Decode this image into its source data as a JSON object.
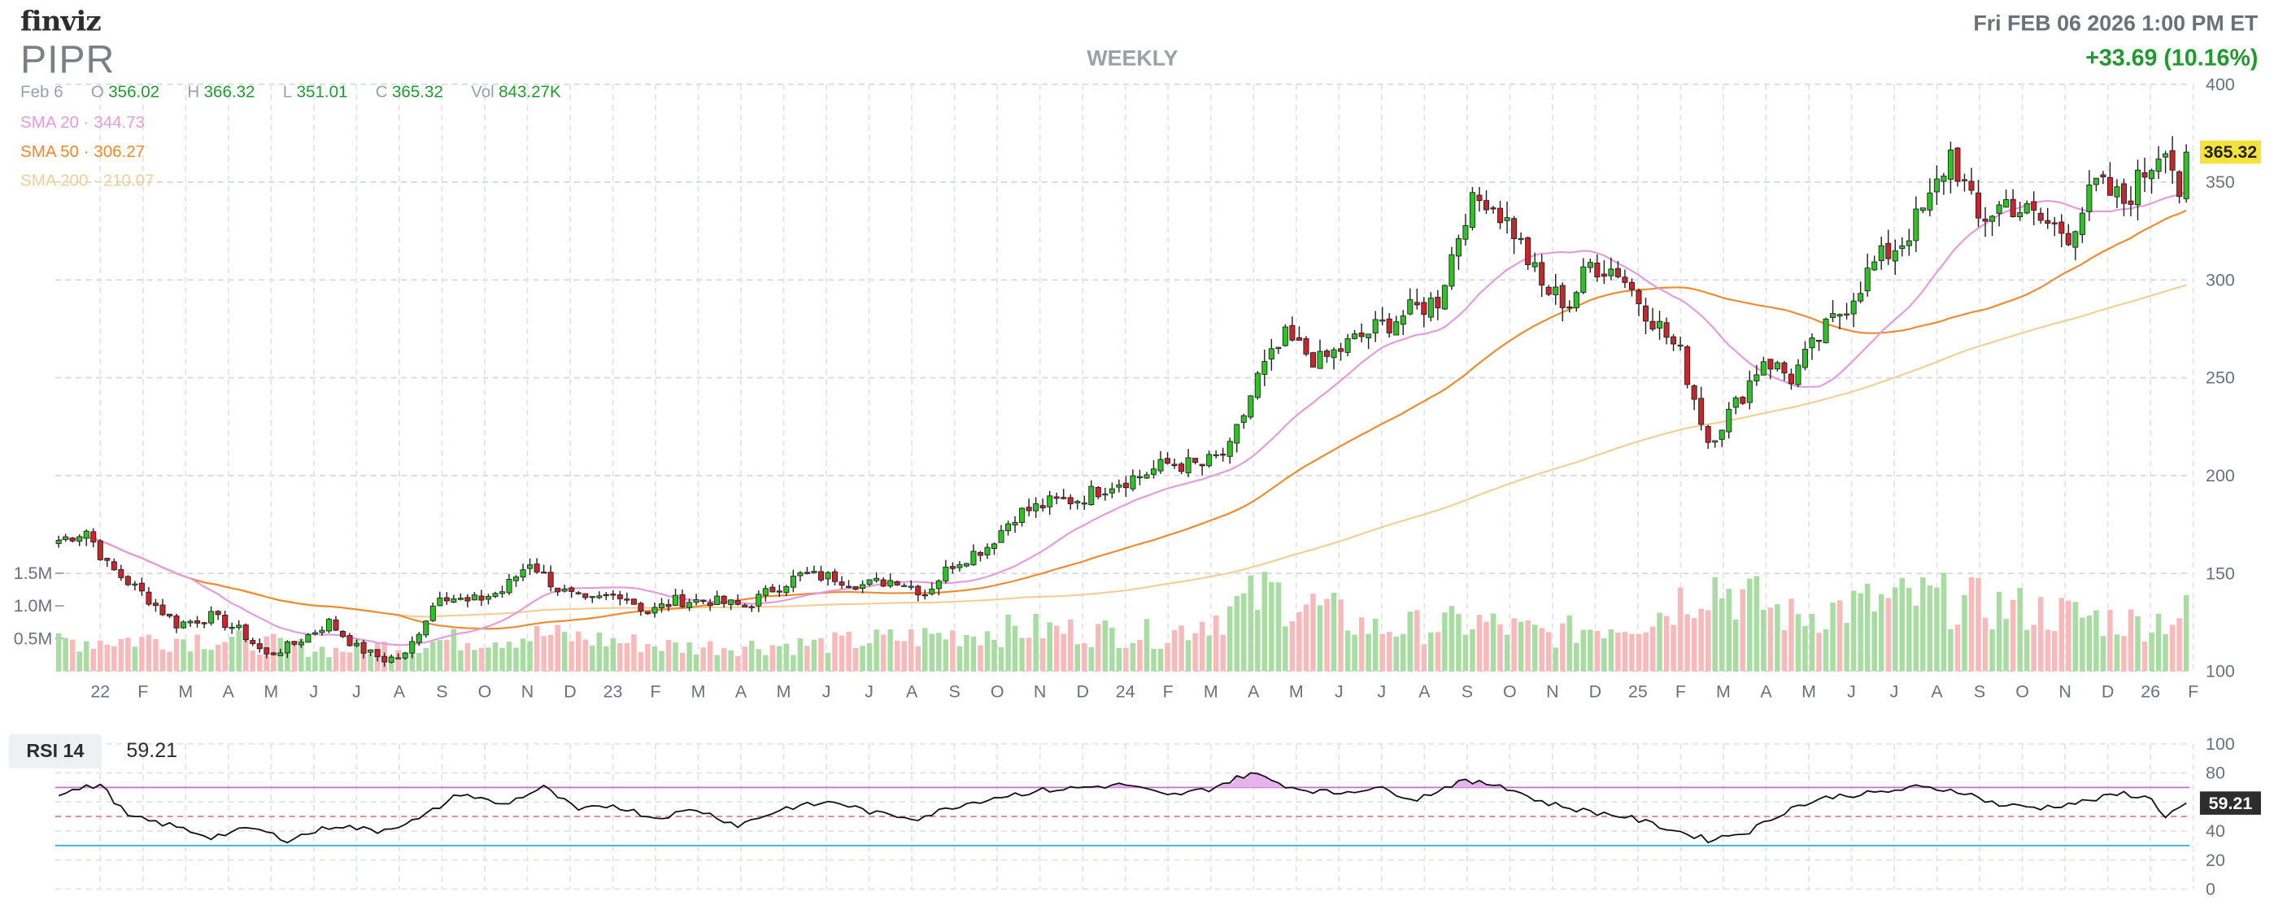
{
  "header": {
    "brand": "finviz",
    "ticker": "PIPR",
    "period": "WEEKLY",
    "datetime": "Fri FEB 06 2026 1:00 PM ET",
    "change": "+33.69 (10.16%)"
  },
  "ohlc": {
    "date": "Feb 6",
    "open_label": "O",
    "open": "356.02",
    "high_label": "H",
    "high": "366.32",
    "low_label": "L",
    "low": "351.01",
    "close_label": "C",
    "close": "365.32",
    "vol_label": "Vol",
    "vol": "843.27K"
  },
  "sma": [
    {
      "label": "SMA 20",
      "value": "344.73",
      "color": "#e39be0"
    },
    {
      "label": "SMA 50",
      "value": "306.27",
      "color": "#f08a2c"
    },
    {
      "label": "SMA 200",
      "value": "210.07",
      "color": "#f3cf96"
    }
  ],
  "colors": {
    "up": "#2ec226",
    "down": "#c9252c",
    "vol_up": "#a9dca2",
    "vol_down": "#f7b9b9",
    "price_tag": "#f5e23c",
    "rsi_line": "#111111",
    "rsi_upper": "#c46fd1",
    "rsi_lower": "#33b3e0"
  },
  "rsi": {
    "label": "RSI 14",
    "value": "59.21"
  },
  "chart_data": {
    "type": "candlestick",
    "interval": "weekly",
    "last_price": "365.32",
    "price_axis": {
      "min": 100,
      "max": 400,
      "ticks": [
        "400",
        "350",
        "300",
        "250",
        "200",
        "150",
        "100"
      ]
    },
    "volume_axis": {
      "ticks": [
        "1.5M",
        "1.0M",
        "0.5M"
      ]
    },
    "x_axis_labels": [
      "22",
      "F",
      "M",
      "A",
      "M",
      "J",
      "J",
      "A",
      "S",
      "O",
      "N",
      "D",
      "23",
      "F",
      "M",
      "A",
      "M",
      "J",
      "J",
      "A",
      "S",
      "O",
      "N",
      "D",
      "24",
      "F",
      "M",
      "A",
      "M",
      "J",
      "J",
      "A",
      "S",
      "O",
      "N",
      "D",
      "25",
      "F",
      "M",
      "A",
      "M",
      "J",
      "J",
      "A",
      "S",
      "O",
      "N",
      "D",
      "26",
      "F"
    ],
    "close_anchors": [
      [
        0,
        167
      ],
      [
        4,
        172
      ],
      [
        7,
        154
      ],
      [
        12,
        140
      ],
      [
        17,
        124
      ],
      [
        22,
        128
      ],
      [
        26,
        121
      ],
      [
        30,
        108
      ],
      [
        34,
        114
      ],
      [
        39,
        125
      ],
      [
        43,
        112
      ],
      [
        47,
        106
      ],
      [
        50,
        108
      ],
      [
        55,
        140
      ],
      [
        59,
        135
      ],
      [
        64,
        141
      ],
      [
        68,
        156
      ],
      [
        72,
        142
      ],
      [
        76,
        135
      ],
      [
        81,
        140
      ],
      [
        85,
        130
      ],
      [
        89,
        136
      ],
      [
        94,
        136
      ],
      [
        99,
        133
      ],
      [
        103,
        142
      ],
      [
        107,
        149
      ],
      [
        112,
        148
      ],
      [
        116,
        144
      ],
      [
        121,
        147
      ],
      [
        125,
        140
      ],
      [
        129,
        155
      ],
      [
        134,
        164
      ],
      [
        138,
        180
      ],
      [
        143,
        186
      ],
      [
        147,
        188
      ],
      [
        152,
        196
      ],
      [
        156,
        200
      ],
      [
        160,
        206
      ],
      [
        165,
        205
      ],
      [
        169,
        213
      ],
      [
        173,
        250
      ],
      [
        177,
        270
      ],
      [
        182,
        258
      ],
      [
        186,
        267
      ],
      [
        190,
        275
      ],
      [
        194,
        282
      ],
      [
        199,
        290
      ],
      [
        203,
        335
      ],
      [
        206,
        343
      ],
      [
        210,
        325
      ],
      [
        214,
        296
      ],
      [
        218,
        288
      ],
      [
        221,
        308
      ],
      [
        225,
        305
      ],
      [
        229,
        285
      ],
      [
        234,
        262
      ],
      [
        238,
        218
      ],
      [
        242,
        236
      ],
      [
        246,
        260
      ],
      [
        250,
        250
      ],
      [
        254,
        270
      ],
      [
        258,
        288
      ],
      [
        262,
        308
      ],
      [
        266,
        320
      ],
      [
        270,
        340
      ],
      [
        273,
        365
      ],
      [
        277,
        330
      ],
      [
        281,
        340
      ],
      [
        286,
        330
      ],
      [
        290,
        324
      ],
      [
        294,
        348
      ],
      [
        298,
        340
      ],
      [
        302,
        360
      ],
      [
        304,
        372
      ],
      [
        306,
        345
      ],
      [
        307,
        365
      ]
    ],
    "volume_anchors": [
      [
        0,
        0.5
      ],
      [
        20,
        0.55
      ],
      [
        40,
        0.35
      ],
      [
        55,
        0.5
      ],
      [
        70,
        0.6
      ],
      [
        90,
        0.4
      ],
      [
        110,
        0.45
      ],
      [
        140,
        0.7
      ],
      [
        160,
        0.6
      ],
      [
        175,
        1.3
      ],
      [
        190,
        0.7
      ],
      [
        205,
        0.8
      ],
      [
        215,
        0.6
      ],
      [
        230,
        0.9
      ],
      [
        238,
        1.5
      ],
      [
        250,
        0.9
      ],
      [
        260,
        1.1
      ],
      [
        270,
        1.2
      ],
      [
        285,
        1.0
      ],
      [
        300,
        0.8
      ],
      [
        307,
        0.95
      ]
    ],
    "rsi_levels": {
      "upper": 70,
      "lower": 30,
      "axis": [
        "100",
        "80",
        "60",
        "40",
        "20",
        "0"
      ]
    },
    "rsi_anchors": [
      [
        0,
        66
      ],
      [
        6,
        72
      ],
      [
        10,
        50
      ],
      [
        16,
        44
      ],
      [
        22,
        36
      ],
      [
        28,
        42
      ],
      [
        33,
        34
      ],
      [
        40,
        44
      ],
      [
        46,
        40
      ],
      [
        52,
        48
      ],
      [
        58,
        66
      ],
      [
        64,
        58
      ],
      [
        70,
        70
      ],
      [
        75,
        54
      ],
      [
        80,
        58
      ],
      [
        86,
        49
      ],
      [
        92,
        55
      ],
      [
        98,
        44
      ],
      [
        105,
        56
      ],
      [
        112,
        60
      ],
      [
        118,
        52
      ],
      [
        124,
        49
      ],
      [
        130,
        58
      ],
      [
        136,
        64
      ],
      [
        142,
        68
      ],
      [
        148,
        70
      ],
      [
        154,
        72
      ],
      [
        160,
        64
      ],
      [
        166,
        69
      ],
      [
        172,
        80
      ],
      [
        178,
        70
      ],
      [
        184,
        66
      ],
      [
        190,
        70
      ],
      [
        196,
        62
      ],
      [
        202,
        74
      ],
      [
        208,
        72
      ],
      [
        214,
        60
      ],
      [
        220,
        54
      ],
      [
        226,
        50
      ],
      [
        232,
        42
      ],
      [
        238,
        34
      ],
      [
        244,
        40
      ],
      [
        250,
        56
      ],
      [
        256,
        64
      ],
      [
        262,
        66
      ],
      [
        268,
        70
      ],
      [
        274,
        68
      ],
      [
        280,
        58
      ],
      [
        286,
        56
      ],
      [
        292,
        60
      ],
      [
        298,
        66
      ],
      [
        302,
        62
      ],
      [
        304,
        50
      ],
      [
        307,
        59
      ]
    ]
  }
}
